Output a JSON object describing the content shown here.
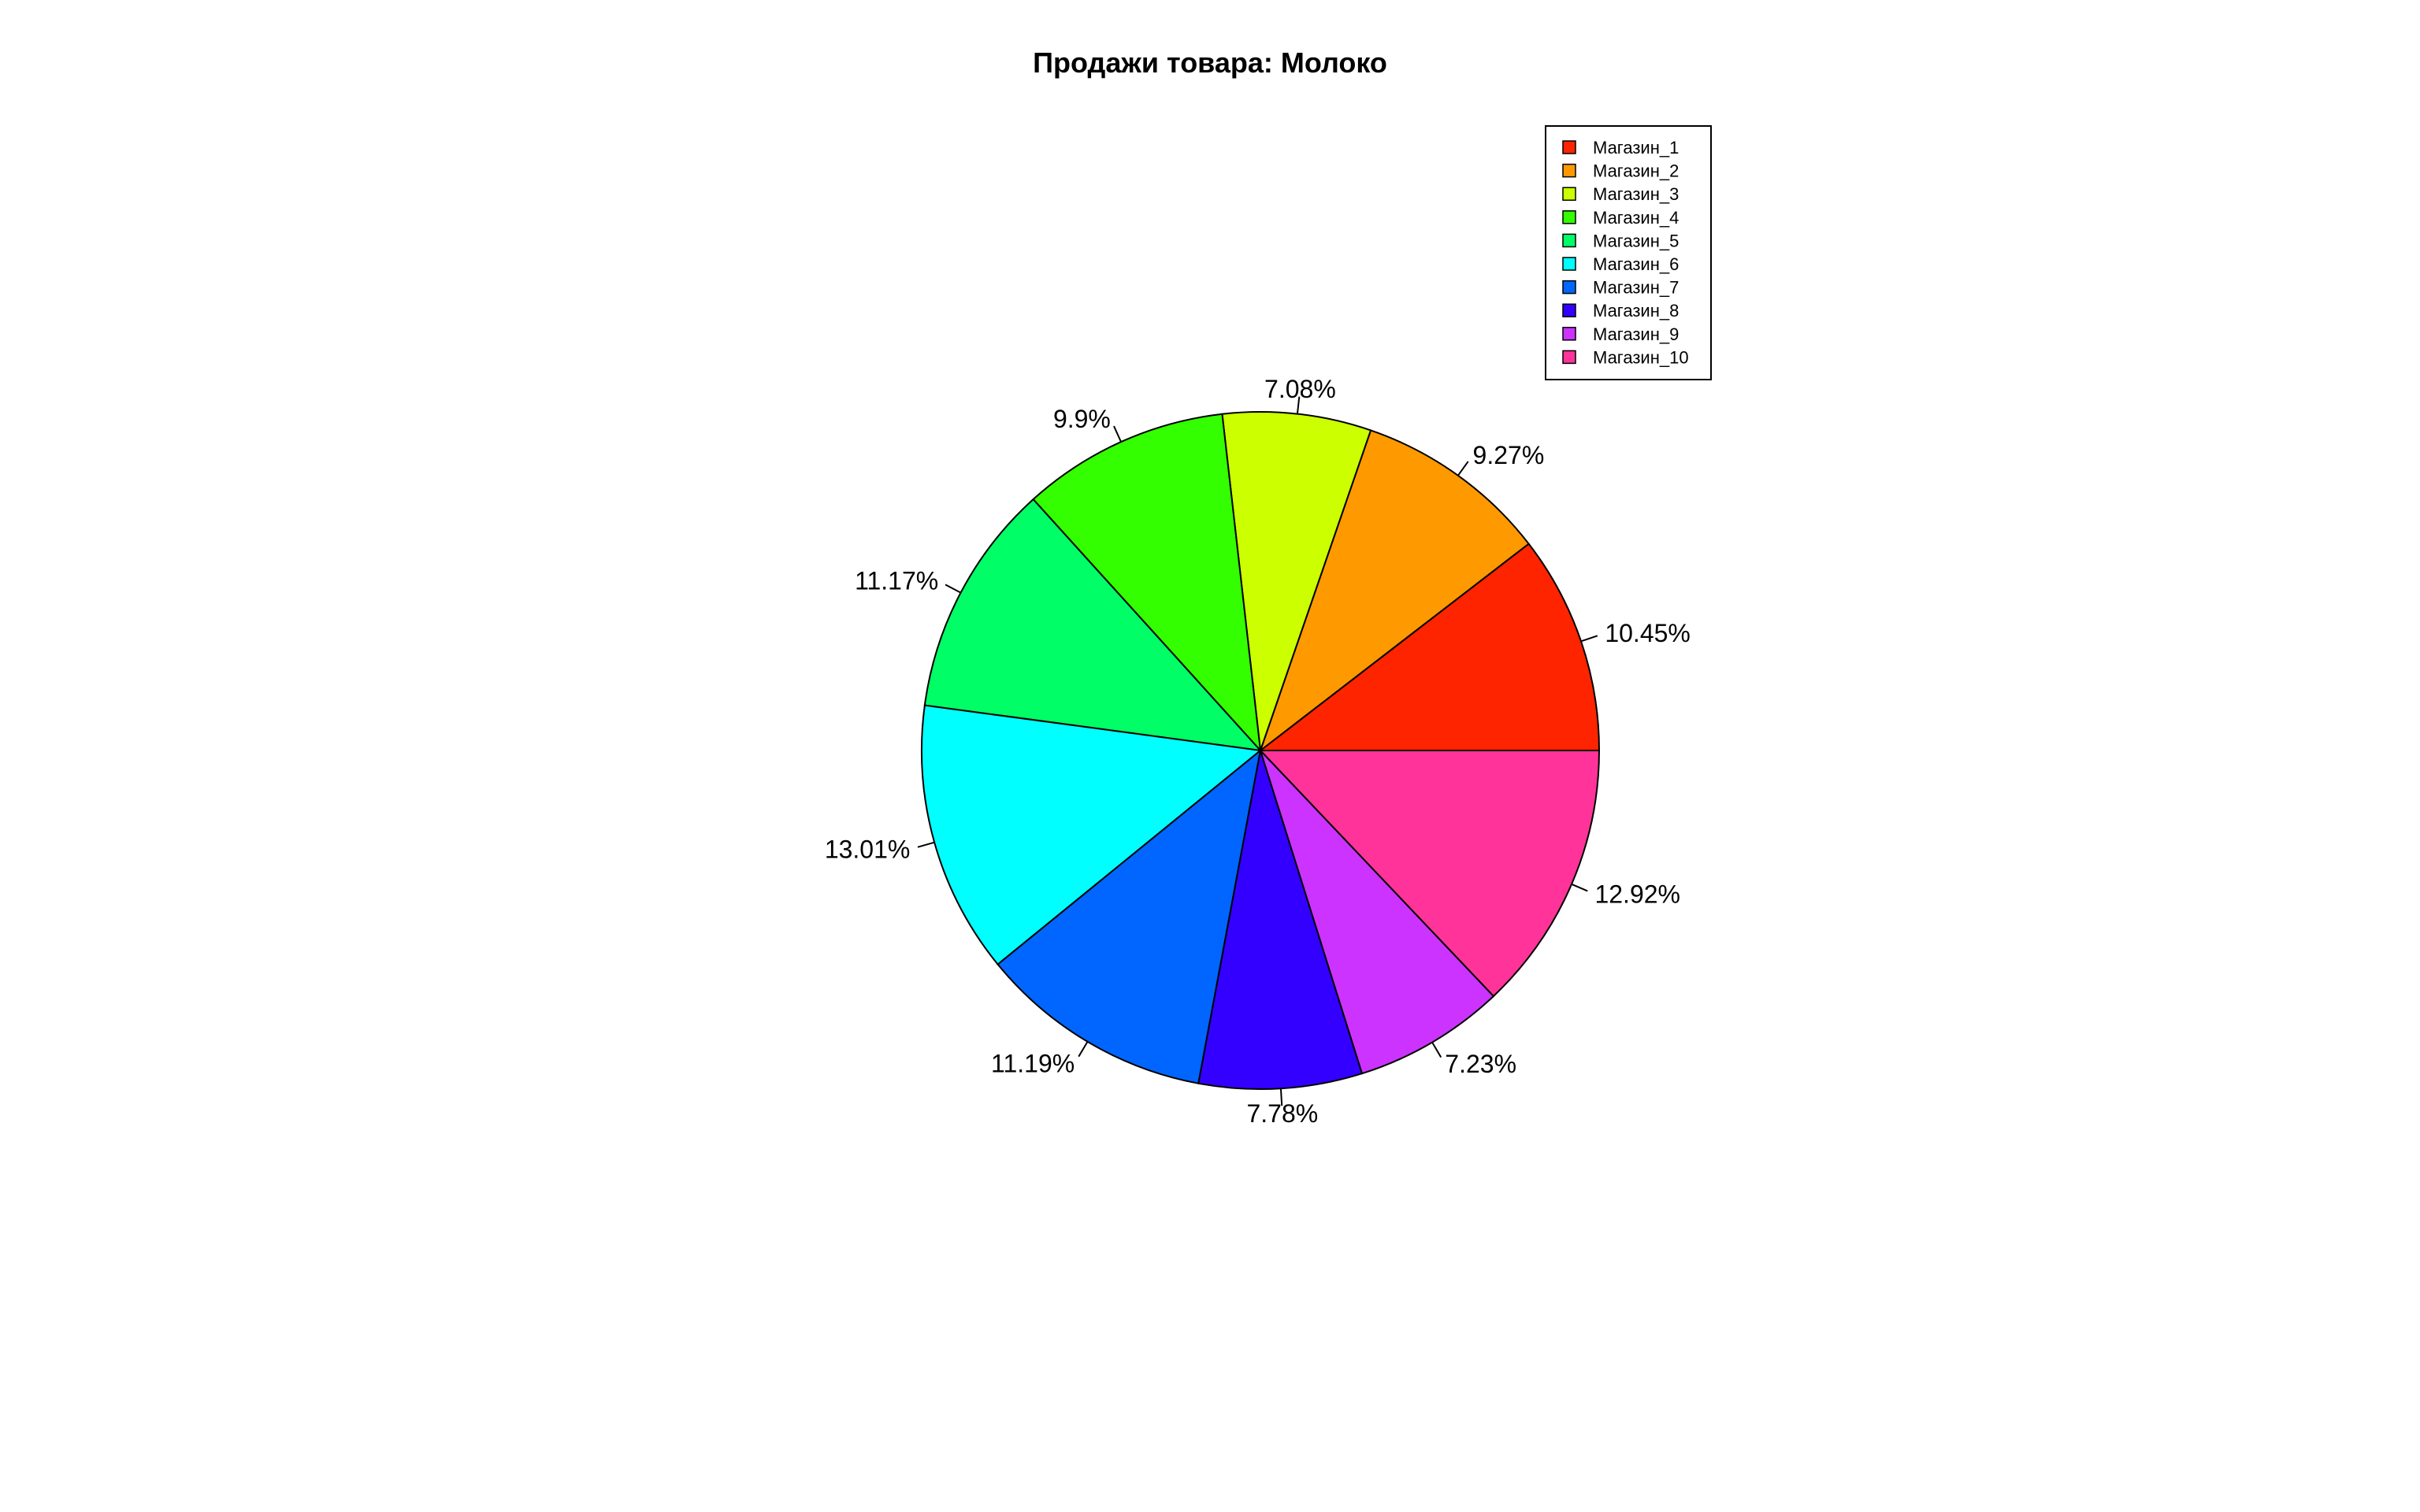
{
  "chart_data": {
    "type": "pie",
    "title": "Продажи товара: Молоко",
    "categories": [
      "Магазин_1",
      "Магазин_2",
      "Магазин_3",
      "Магазин_4",
      "Магазин_5",
      "Магазин_6",
      "Магазин_7",
      "Магазин_8",
      "Магазин_9",
      "Магазин_10"
    ],
    "values": [
      10.45,
      9.27,
      7.08,
      9.9,
      11.17,
      13.01,
      11.19,
      7.78,
      7.23,
      12.92
    ],
    "labels": [
      "10.45%",
      "9.27%",
      "7.08%",
      "9.9%",
      "11.17%",
      "13.01%",
      "11.19%",
      "7.78%",
      "7.23%",
      "12.92%"
    ],
    "colors": [
      "#FF2400",
      "#FF9900",
      "#CCFF00",
      "#33FF00",
      "#00FF66",
      "#00FFFF",
      "#0066FF",
      "#3300FF",
      "#CC33FF",
      "#FF3399"
    ],
    "start": "3 o'clock",
    "direction": "counterclockwise",
    "legend_position": "top-right"
  }
}
